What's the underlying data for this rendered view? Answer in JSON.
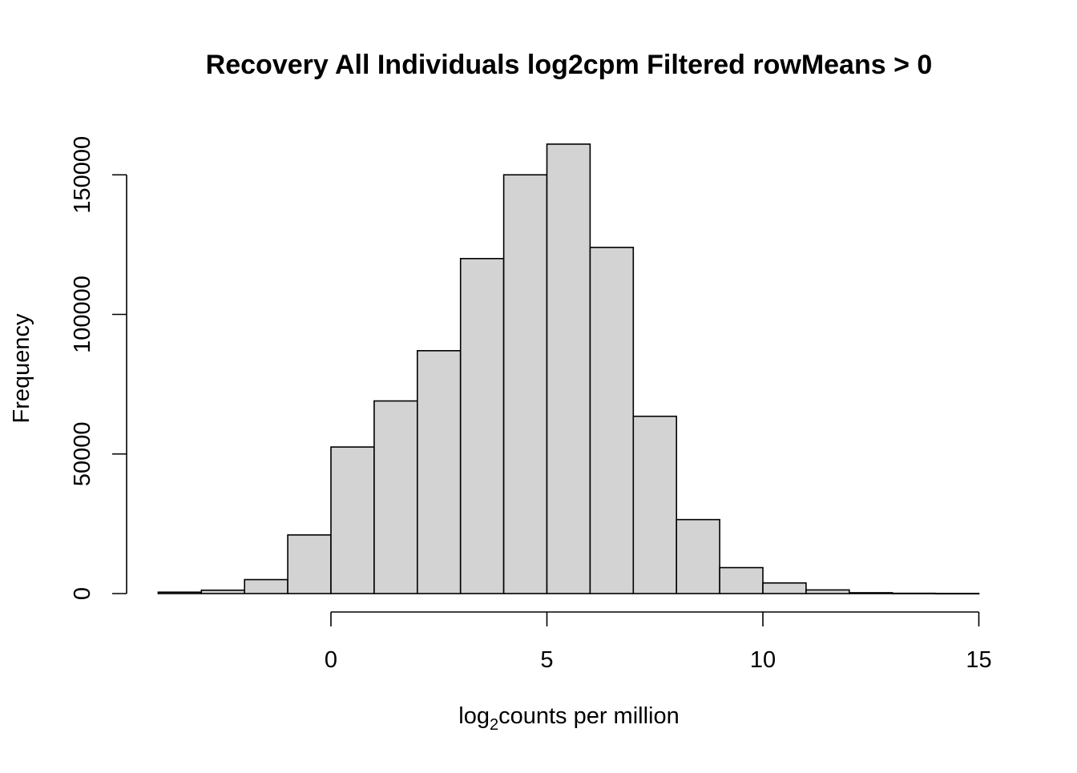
{
  "chart_data": {
    "type": "bar",
    "title": "Recovery All Individuals log2cpm Filtered rowMeans > 0",
    "xlabel": {
      "base": "log",
      "subscript": "2",
      "rest": "counts per million"
    },
    "ylabel": "Frequency",
    "bin_edges": [
      -4,
      -3,
      -2,
      -1,
      0,
      1,
      2,
      3,
      4,
      5,
      6,
      7,
      8,
      9,
      10,
      11,
      12,
      13,
      14,
      15
    ],
    "values": [
      500,
      1200,
      5000,
      21000,
      52500,
      69000,
      87000,
      120000,
      150000,
      161000,
      124000,
      63500,
      26500,
      9300,
      3800,
      1300,
      300,
      100,
      50
    ],
    "xlim": [
      -4,
      15
    ],
    "ylim": [
      0,
      161000
    ],
    "x_ticks": [
      0,
      5,
      10,
      15
    ],
    "x_tick_labels": [
      "0",
      "5",
      "10",
      "15"
    ],
    "y_ticks": [
      0,
      50000,
      100000,
      150000
    ],
    "y_tick_labels": [
      "0",
      "50000",
      "100000",
      "150000"
    ],
    "bar_fill": "#d3d3d3",
    "bar_stroke": "#000000",
    "grid": false,
    "legend": "none"
  }
}
